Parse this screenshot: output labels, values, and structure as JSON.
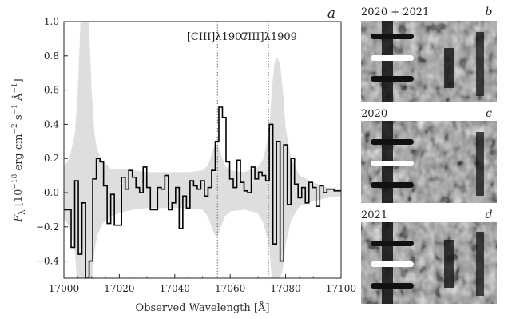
{
  "chart_data": [
    {
      "type": "line",
      "panel_letter": "a",
      "xlabel": "Observed Wavelength [Å]",
      "ylabel": "F_λ [10^-18 erg cm^-2 s^-1 Å^-1]",
      "ylabel_parts": {
        "sym": "F",
        "sub": "λ",
        "open": " [10",
        "exp1": "−18",
        "mid1": " erg cm",
        "exp2": "−2",
        "mid2": " s",
        "exp3": "−1",
        "mid3": " Å",
        "exp4": "−1",
        "close": "]"
      },
      "xlim": [
        17000,
        17100
      ],
      "ylim": [
        -0.5,
        1.0
      ],
      "xticks": [
        "17000",
        "17020",
        "17040",
        "17060",
        "17080",
        "17100"
      ],
      "yticks": [
        "−0.4",
        "−0.2",
        "0.0",
        "0.2",
        "0.4",
        "0.6",
        "0.8",
        "1.0"
      ],
      "grid": false,
      "series": [
        {
          "kind": "step",
          "color": "#000000",
          "x": [
            17000,
            17001.3,
            17002.6,
            17003.9,
            17005.2,
            17006.5,
            17007.8,
            17009.1,
            17010.4,
            17011.7,
            17013.0,
            17014.3,
            17015.6,
            17016.9,
            17018.2,
            17019.5,
            17020.8,
            17022.1,
            17023.4,
            17024.7,
            17026.0,
            17027.3,
            17028.6,
            17029.9,
            17031.2,
            17032.5,
            17033.8,
            17035.1,
            17036.4,
            17037.7,
            17039.0,
            17040.3,
            17041.6,
            17042.9,
            17044.2,
            17045.5,
            17046.8,
            17048.1,
            17049.4,
            17050.7,
            17052.0,
            17053.3,
            17054.6,
            17055.9,
            17057.2,
            17058.5,
            17059.8,
            17061.1,
            17062.4,
            17063.7,
            17065.0,
            17066.3,
            17067.6,
            17068.9,
            17070.2,
            17071.5,
            17072.8,
            17074.1,
            17075.4,
            17076.7,
            17078.0,
            17079.3,
            17080.6,
            17081.9,
            17083.2,
            17084.5,
            17085.8,
            17087.1,
            17088.4,
            17089.7,
            17091.0,
            17092.3,
            17093.6,
            17094.9,
            17096.2,
            17097.5,
            17098.8
          ],
          "y": [
            -0.1,
            -0.1,
            -0.32,
            0.07,
            -0.36,
            -0.06,
            -0.5,
            -0.4,
            0.08,
            0.2,
            0.18,
            0.04,
            -0.18,
            -0.01,
            -0.19,
            -0.19,
            0.09,
            0.02,
            0.13,
            0.09,
            0.03,
            0.0,
            0.15,
            0.03,
            -0.1,
            -0.1,
            0.03,
            0.02,
            0.1,
            -0.1,
            -0.06,
            0.03,
            -0.21,
            -0.02,
            -0.09,
            0.07,
            0.04,
            0.02,
            0.07,
            -0.02,
            0.03,
            0.13,
            0.3,
            0.5,
            0.44,
            0.18,
            0.08,
            0.03,
            0.19,
            0.06,
            0.01,
            0.0,
            0.15,
            0.08,
            0.12,
            0.1,
            0.07,
            0.4,
            -0.3,
            0.3,
            -0.4,
            0.28,
            -0.07,
            0.2,
            0.05,
            -0.03,
            0.03,
            -0.06,
            0.06,
            0.03,
            -0.08,
            0.04,
            0.0,
            0.02,
            0.02,
            0.01,
            0.01
          ]
        },
        {
          "kind": "error-band",
          "color": "#dedede",
          "x": [
            17000,
            17002,
            17004,
            17005,
            17006,
            17007,
            17008,
            17009,
            17010,
            17011,
            17012,
            17014,
            17017,
            17020,
            17025,
            17030,
            17035,
            17040,
            17045,
            17050,
            17052,
            17054,
            17055,
            17056,
            17058,
            17060,
            17065,
            17070,
            17072,
            17074,
            17075,
            17076,
            17077,
            17078,
            17079,
            17080,
            17082,
            17085,
            17090,
            17095,
            17100
          ],
          "upper": [
            0.15,
            0.2,
            0.35,
            0.6,
            1.0,
            1.3,
            1.3,
            1.0,
            0.6,
            0.35,
            0.25,
            0.18,
            0.14,
            0.14,
            0.13,
            0.12,
            0.12,
            0.12,
            0.12,
            0.13,
            0.16,
            0.26,
            0.29,
            0.26,
            0.16,
            0.13,
            0.12,
            0.15,
            0.2,
            0.35,
            0.6,
            0.76,
            0.79,
            0.75,
            0.6,
            0.38,
            0.2,
            0.1,
            0.06,
            0.03,
            0.02
          ],
          "lower": [
            -0.15,
            -0.2,
            -0.35,
            -0.6,
            -0.8,
            -0.8,
            -0.8,
            -0.8,
            -0.6,
            -0.35,
            -0.25,
            -0.18,
            -0.14,
            -0.12,
            -0.1,
            -0.09,
            -0.09,
            -0.09,
            -0.09,
            -0.1,
            -0.14,
            -0.23,
            -0.26,
            -0.23,
            -0.14,
            -0.11,
            -0.1,
            -0.12,
            -0.18,
            -0.3,
            -0.5,
            -0.5,
            -0.5,
            -0.5,
            -0.45,
            -0.3,
            -0.16,
            -0.08,
            -0.05,
            -0.03,
            -0.02
          ]
        }
      ],
      "vlines": [
        {
          "x": 17055.4,
          "label": "[CIII]λ1907"
        },
        {
          "x": 17073.8,
          "label": "CIII]λ1909"
        }
      ]
    }
  ],
  "image_panels": [
    {
      "title": "2020 + 2021",
      "letter": "b"
    },
    {
      "title": "2020",
      "letter": "c"
    },
    {
      "title": "2021",
      "letter": "d"
    }
  ]
}
